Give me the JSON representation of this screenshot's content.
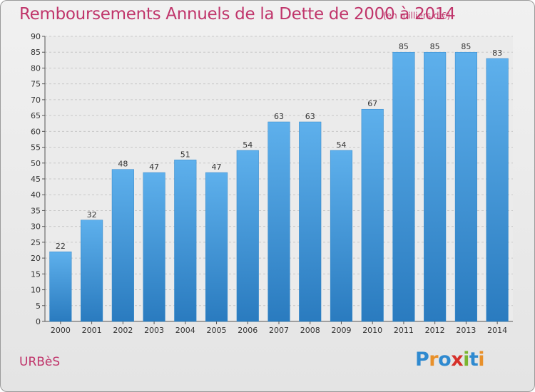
{
  "header": {
    "title": "Remboursements Annuels de la Dette de 2000 à 2014",
    "subtitle": "(en milliers d'€)"
  },
  "footer": {
    "commune": "URBèS",
    "logo_letters": [
      {
        "char": "P",
        "color": "#2f8ad0"
      },
      {
        "char": "r",
        "color": "#e8902a"
      },
      {
        "char": "o",
        "color": "#2f8ad0"
      },
      {
        "char": "x",
        "color": "#d6302a"
      },
      {
        "char": "i",
        "color": "#7bb52f"
      },
      {
        "char": "t",
        "color": "#2f8ad0"
      },
      {
        "char": "i",
        "color": "#e8902a"
      }
    ]
  },
  "chart_data": {
    "type": "bar",
    "categories": [
      "2000",
      "2001",
      "2002",
      "2003",
      "2004",
      "2005",
      "2006",
      "2007",
      "2008",
      "2009",
      "2010",
      "2011",
      "2012",
      "2013",
      "2014"
    ],
    "values": [
      22,
      32,
      48,
      47,
      51,
      47,
      54,
      63,
      63,
      54,
      67,
      85,
      85,
      85,
      83
    ],
    "ylim": [
      0,
      90
    ],
    "yticks": [
      0,
      5,
      10,
      15,
      20,
      25,
      30,
      35,
      40,
      45,
      50,
      55,
      60,
      65,
      70,
      75,
      80,
      85,
      90
    ],
    "grid": true,
    "bar_color": "#3a93d8",
    "title_color": "#c0356b"
  }
}
